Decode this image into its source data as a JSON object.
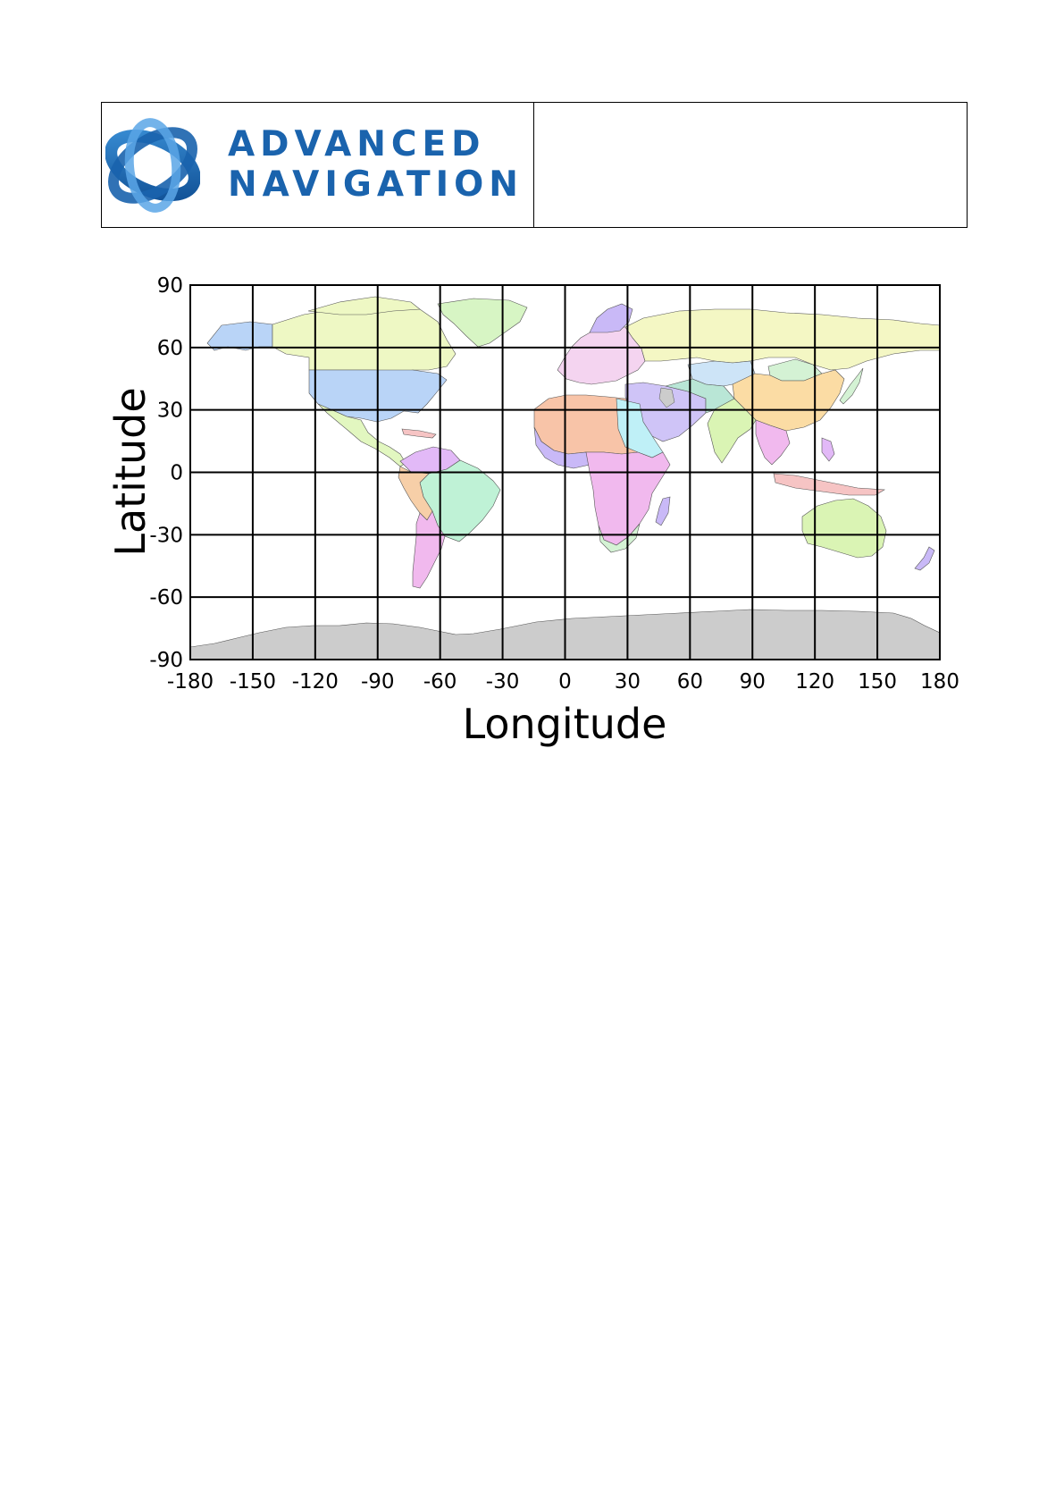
{
  "header": {
    "logo": {
      "icon": "advanced-navigation-logo-icon",
      "line1": "ADVANCED",
      "line2": "NAVIGATION",
      "color": "#1a63ad"
    },
    "right_cell": ""
  },
  "map": {
    "xlabel": "Longitude",
    "ylabel": "Latitude",
    "x_ticks": [
      "-180",
      "-150",
      "-120",
      "-90",
      "-60",
      "-30",
      "0",
      "30",
      "60",
      "90",
      "120",
      "150",
      "180"
    ],
    "y_ticks": [
      "90",
      "60",
      "30",
      "0",
      "-30",
      "-60",
      "-90"
    ],
    "xlim": [
      -180,
      180
    ],
    "ylim": [
      -90,
      90
    ],
    "grid_step_degrees": 30,
    "grid": true,
    "ocean_color": "#ffffff",
    "antarctica_color": "#cccccc"
  }
}
